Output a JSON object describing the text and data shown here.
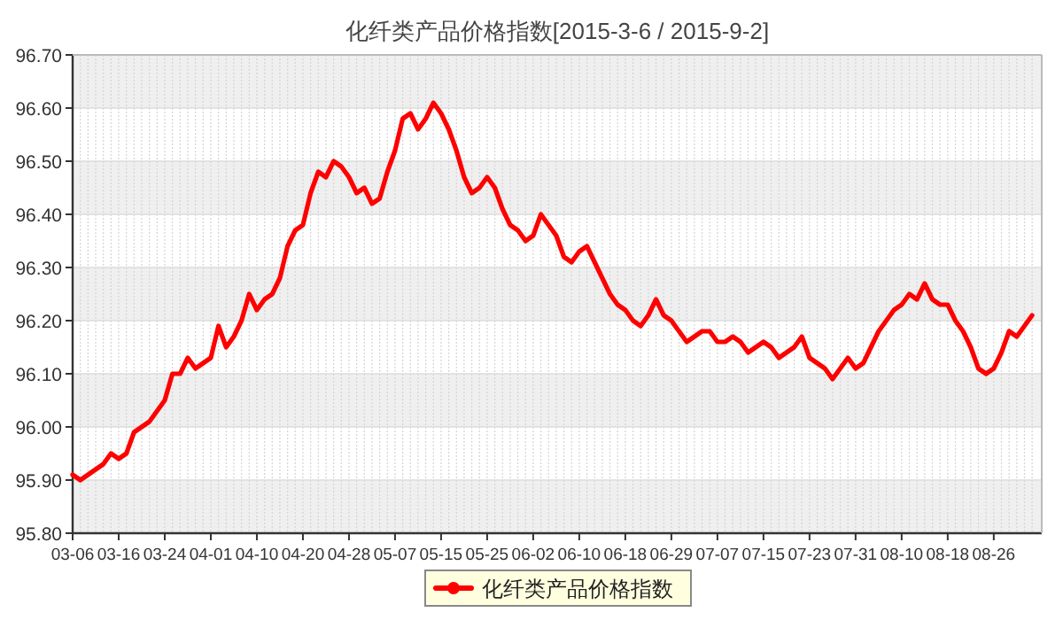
{
  "chart_data": {
    "type": "line",
    "title": "化纤类产品价格指数[2015-3-6 / 2015-9-2]",
    "categories": [
      "03-06",
      null,
      null,
      null,
      null,
      null,
      "03-16",
      null,
      null,
      null,
      null,
      null,
      "03-24",
      null,
      null,
      null,
      null,
      null,
      "04-01",
      null,
      null,
      null,
      null,
      null,
      "04-10",
      null,
      null,
      null,
      null,
      null,
      "04-20",
      null,
      null,
      null,
      null,
      null,
      "04-28",
      null,
      null,
      null,
      null,
      null,
      "05-07",
      null,
      null,
      null,
      null,
      null,
      "05-15",
      null,
      null,
      null,
      null,
      null,
      "05-25",
      null,
      null,
      null,
      null,
      null,
      "06-02",
      null,
      null,
      null,
      null,
      null,
      "06-10",
      null,
      null,
      null,
      null,
      null,
      "06-18",
      null,
      null,
      null,
      null,
      null,
      "06-29",
      null,
      null,
      null,
      null,
      null,
      "07-07",
      null,
      null,
      null,
      null,
      null,
      "07-15",
      null,
      null,
      null,
      null,
      null,
      "07-23",
      null,
      null,
      null,
      null,
      null,
      "07-31",
      null,
      null,
      null,
      null,
      null,
      "08-10",
      null,
      null,
      null,
      null,
      null,
      "08-18",
      null,
      null,
      null,
      null,
      null,
      "08-26",
      null,
      null,
      null,
      null,
      null
    ],
    "series": [
      {
        "name": "化纤类产品价格指数",
        "color": "#ff0000",
        "values": [
          95.91,
          95.9,
          95.91,
          95.92,
          95.93,
          95.95,
          95.94,
          95.95,
          95.99,
          96.0,
          96.01,
          96.03,
          96.05,
          96.1,
          96.1,
          96.13,
          96.11,
          96.12,
          96.13,
          96.19,
          96.15,
          96.17,
          96.2,
          96.25,
          96.22,
          96.24,
          96.25,
          96.28,
          96.34,
          96.37,
          96.38,
          96.44,
          96.48,
          96.47,
          96.5,
          96.49,
          96.47,
          96.44,
          96.45,
          96.42,
          96.43,
          96.48,
          96.52,
          96.58,
          96.59,
          96.56,
          96.58,
          96.61,
          96.59,
          96.56,
          96.52,
          96.47,
          96.44,
          96.45,
          96.47,
          96.45,
          96.41,
          96.38,
          96.37,
          96.35,
          96.36,
          96.4,
          96.38,
          96.36,
          96.32,
          96.31,
          96.33,
          96.34,
          96.31,
          96.28,
          96.25,
          96.23,
          96.22,
          96.2,
          96.19,
          96.21,
          96.24,
          96.21,
          96.2,
          96.18,
          96.16,
          96.17,
          96.18,
          96.18,
          96.16,
          96.16,
          96.17,
          96.16,
          96.14,
          96.15,
          96.16,
          96.15,
          96.13,
          96.14,
          96.15,
          96.17,
          96.13,
          96.12,
          96.11,
          96.09,
          96.11,
          96.13,
          96.11,
          96.12,
          96.15,
          96.18,
          96.2,
          96.22,
          96.23,
          96.25,
          96.24,
          96.27,
          96.24,
          96.23,
          96.23,
          96.2,
          96.18,
          96.15,
          96.11,
          96.1,
          96.11,
          96.14,
          96.18,
          96.17,
          96.19,
          96.21
        ]
      }
    ],
    "ylim": [
      95.8,
      96.7
    ],
    "yticks": [
      {
        "value": 95.8,
        "label": "95.80"
      },
      {
        "value": 95.9,
        "label": "95.90"
      },
      {
        "value": 96.0,
        "label": "96.00"
      },
      {
        "value": 96.1,
        "label": "96.10"
      },
      {
        "value": 96.2,
        "label": "96.20"
      },
      {
        "value": 96.3,
        "label": "96.30"
      },
      {
        "value": 96.4,
        "label": "96.40"
      },
      {
        "value": 96.5,
        "label": "96.50"
      },
      {
        "value": 96.6,
        "label": "96.60"
      },
      {
        "value": 96.7,
        "label": "96.70"
      }
    ],
    "grid": true,
    "legend": "bottom"
  }
}
